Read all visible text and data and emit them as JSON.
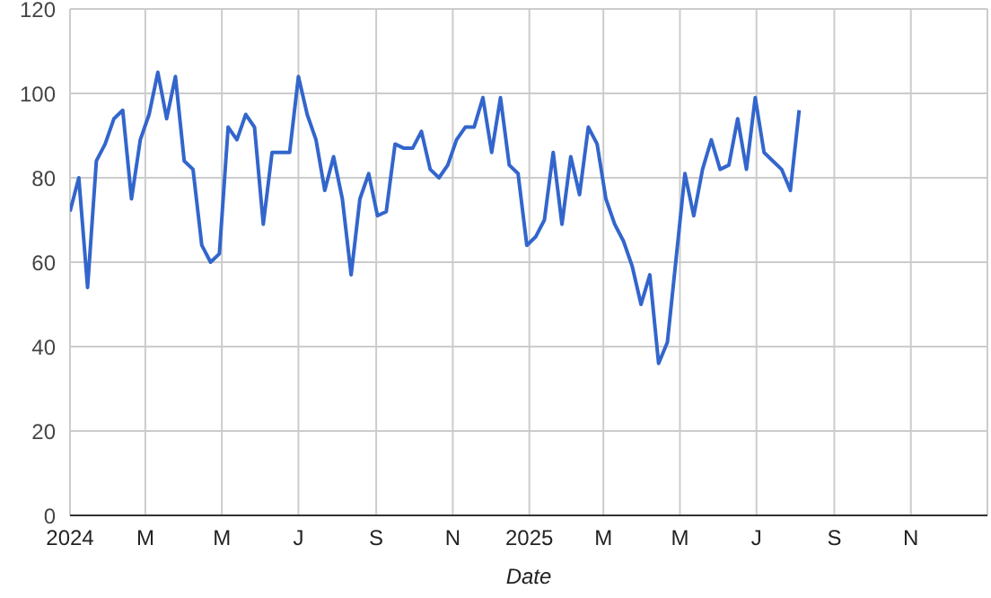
{
  "chart_data": {
    "type": "line",
    "xlabel": "Date",
    "x": [
      "2024-01-01",
      "2024-01-08",
      "2024-01-15",
      "2024-01-22",
      "2024-01-29",
      "2024-02-05",
      "2024-02-12",
      "2024-02-19",
      "2024-02-26",
      "2024-03-04",
      "2024-03-11",
      "2024-03-18",
      "2024-03-25",
      "2024-04-01",
      "2024-04-08",
      "2024-04-15",
      "2024-04-22",
      "2024-04-29",
      "2024-05-06",
      "2024-05-13",
      "2024-05-20",
      "2024-05-27",
      "2024-06-03",
      "2024-06-10",
      "2024-06-17",
      "2024-06-24",
      "2024-07-01",
      "2024-07-08",
      "2024-07-15",
      "2024-07-22",
      "2024-07-29",
      "2024-08-05",
      "2024-08-12",
      "2024-08-19",
      "2024-08-26",
      "2024-09-02",
      "2024-09-09",
      "2024-09-16",
      "2024-09-23",
      "2024-09-30",
      "2024-10-07",
      "2024-10-14",
      "2024-10-21",
      "2024-10-28",
      "2024-11-04",
      "2024-11-11",
      "2024-11-18",
      "2024-11-25",
      "2024-12-02",
      "2024-12-09",
      "2024-12-16",
      "2024-12-23",
      "2024-12-30",
      "2025-01-06",
      "2025-01-13",
      "2025-01-20",
      "2025-01-27",
      "2025-02-03",
      "2025-02-10",
      "2025-02-17",
      "2025-02-24",
      "2025-03-03",
      "2025-03-10",
      "2025-03-17",
      "2025-03-24",
      "2025-03-31",
      "2025-04-07",
      "2025-04-14",
      "2025-04-21",
      "2025-04-28",
      "2025-05-05",
      "2025-05-12",
      "2025-05-19",
      "2025-05-26",
      "2025-06-02",
      "2025-06-09",
      "2025-06-16",
      "2025-06-23",
      "2025-06-30",
      "2025-07-07",
      "2025-07-14",
      "2025-07-21",
      "2025-07-28",
      "2025-08-04"
    ],
    "series": [
      {
        "color": "#3366cc",
        "values": [
          72,
          80,
          54,
          84,
          88,
          94,
          96,
          75,
          89,
          95,
          105,
          94,
          104,
          84,
          82,
          64,
          60,
          62,
          92,
          89,
          95,
          92,
          69,
          86,
          86,
          86,
          104,
          95,
          89,
          77,
          85,
          75,
          57,
          75,
          81,
          71,
          72,
          88,
          87,
          87,
          91,
          82,
          80,
          83,
          89,
          92,
          92,
          99,
          86,
          99,
          83,
          81,
          64,
          66,
          70,
          86,
          69,
          85,
          76,
          92,
          88,
          75,
          69,
          65,
          59,
          50,
          57,
          36,
          41,
          61,
          81,
          71,
          82,
          89,
          82,
          83,
          94,
          82,
          99,
          86,
          84,
          82,
          77,
          96
        ]
      }
    ],
    "xlim": [
      "2024-01-01",
      "2026-01-01"
    ],
    "xticks": [
      {
        "value": "2024-01-01",
        "label": "2024"
      },
      {
        "value": "2024-03-01",
        "label": "M"
      },
      {
        "value": "2024-05-01",
        "label": "M"
      },
      {
        "value": "2024-07-01",
        "label": "J"
      },
      {
        "value": "2024-09-01",
        "label": "S"
      },
      {
        "value": "2024-11-01",
        "label": "N"
      },
      {
        "value": "2025-01-01",
        "label": "2025"
      },
      {
        "value": "2025-03-01",
        "label": "M"
      },
      {
        "value": "2025-05-01",
        "label": "M"
      },
      {
        "value": "2025-07-01",
        "label": "J"
      },
      {
        "value": "2025-09-01",
        "label": "S"
      },
      {
        "value": "2025-11-01",
        "label": "N"
      }
    ],
    "ylim": [
      0,
      120
    ],
    "yticks": [
      0,
      20,
      40,
      60,
      80,
      100,
      120
    ],
    "grid": true,
    "marker": "none",
    "line_style": "solid"
  }
}
